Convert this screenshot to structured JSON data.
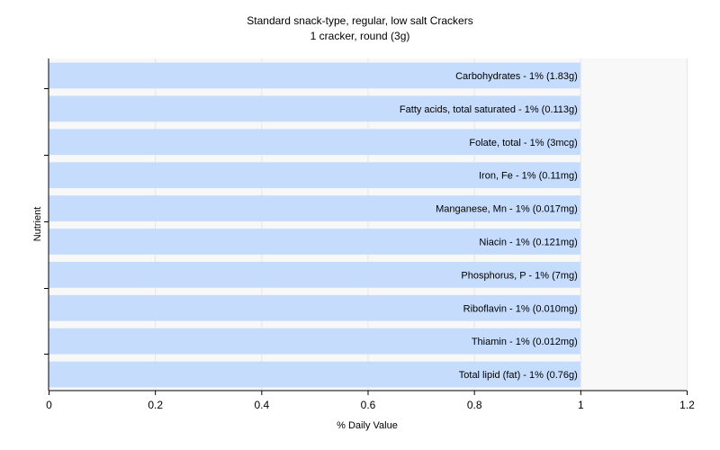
{
  "chart_data": {
    "type": "bar",
    "orientation": "horizontal",
    "title": "Standard snack-type, regular, low salt Crackers",
    "subtitle": "1 cracker, round (3g)",
    "xlabel": "% Daily Value",
    "ylabel": "Nutrient",
    "xlim": [
      0,
      1.2
    ],
    "xticks": [
      "0",
      "0.2",
      "0.4",
      "0.6",
      "0.8",
      "1",
      "1.2"
    ],
    "grid": true,
    "colors": {
      "bar": "#c6dcfd",
      "grid": "#e6e6e6",
      "plot_bg": "#f8f8f8",
      "axis": "#000000"
    },
    "categories": [
      "Carbohydrates",
      "Fatty acids, total saturated",
      "Folate, total",
      "Iron, Fe",
      "Manganese, Mn",
      "Niacin",
      "Phosphorus, P",
      "Riboflavin",
      "Thiamin",
      "Total lipid (fat)"
    ],
    "values": [
      1,
      1,
      1,
      1,
      1,
      1,
      1,
      1,
      1,
      1
    ],
    "bar_labels": [
      "Carbohydrates - 1% (1.83g)",
      "Fatty acids, total saturated - 1% (0.113g)",
      "Folate, total - 1% (3mcg)",
      "Iron, Fe - 1% (0.11mg)",
      "Manganese, Mn - 1% (0.017mg)",
      "Niacin - 1% (0.121mg)",
      "Phosphorus, P - 1% (7mg)",
      "Riboflavin - 1% (0.010mg)",
      "Thiamin - 1% (0.012mg)",
      "Total lipid (fat) - 1% (0.76g)"
    ]
  }
}
